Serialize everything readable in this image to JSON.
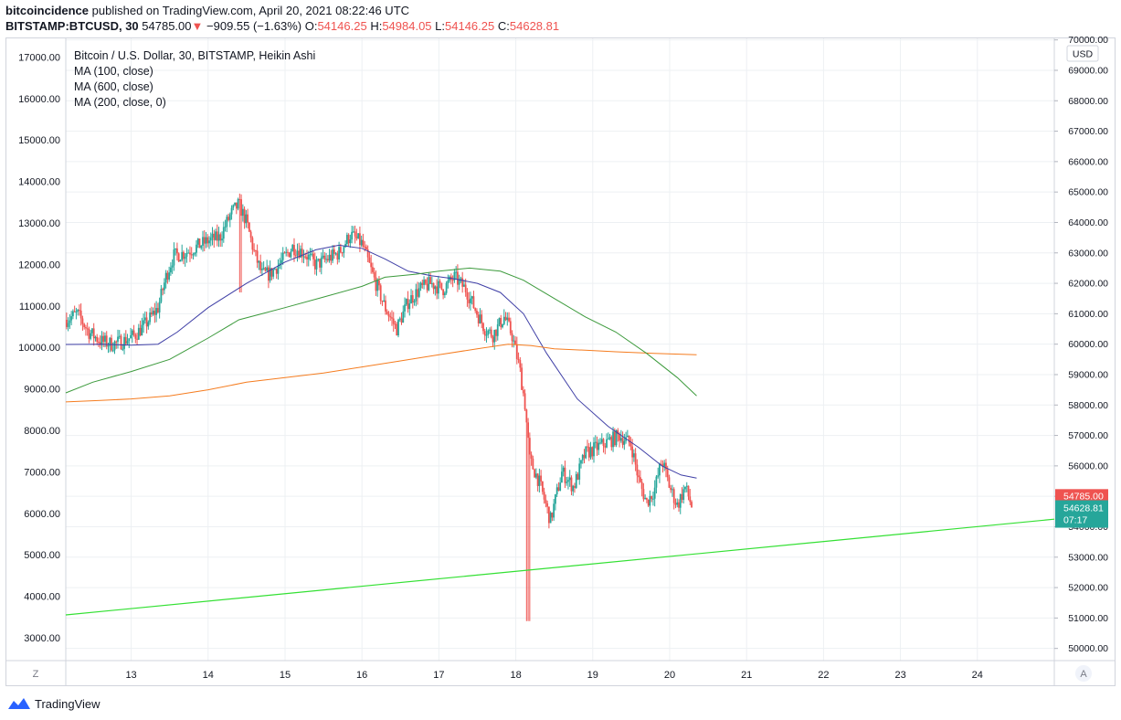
{
  "header": {
    "publisher": "bitcoincidence",
    "published_text": "published on TradingView.com, April 20, 2021 08:22:46 UTC",
    "symbol": "BITSTAMP:BTCUSD, 30",
    "last_price": "54785.00",
    "change_arrow": "▼",
    "change": "−909.55 (−1.63%)",
    "o_label": "O:",
    "o_value": "54146.25",
    "h_label": "H:",
    "h_value": "54984.05",
    "l_label": "L:",
    "l_value": "54146.25",
    "c_label": "C:",
    "c_value": "54628.81"
  },
  "legend": {
    "title": "Bitcoin / U.S. Dollar, 30, BITSTAMP, Heikin Ashi",
    "ma1": "MA (100, close)",
    "ma2": "MA (600, close)",
    "ma3": "MA (200, close, 0)"
  },
  "footer": {
    "brand": "TradingView",
    "left_button": "Z",
    "right_button": "A"
  },
  "colors": {
    "up": "#26a69a",
    "down": "#ef5350",
    "ma100": "#3f3fa6",
    "ma600": "#f57c1f",
    "ma200": "#3c9a3c",
    "trend": "#33e033",
    "grid": "#edf0f3",
    "text": "#131722"
  },
  "chart_data": {
    "type": "candlestick",
    "style": "Heikin Ashi",
    "x_ticks": [
      "13",
      "14",
      "15",
      "16",
      "17",
      "18",
      "19",
      "20",
      "21",
      "22",
      "23",
      "24"
    ],
    "x_tick_days": [
      13,
      14,
      15,
      16,
      17,
      18,
      19,
      20,
      21,
      22,
      23,
      24
    ],
    "x_range_days": [
      12.15,
      25.0
    ],
    "right_axis": {
      "unit_label": "USD",
      "range": [
        49600,
        70050
      ],
      "ticks": [
        "70000.00",
        "69000.00",
        "68000.00",
        "67000.00",
        "66000.00",
        "65000.00",
        "64000.00",
        "63000.00",
        "62000.00",
        "61000.00",
        "60000.00",
        "59000.00",
        "58000.00",
        "57000.00",
        "56000.00",
        "55000.00",
        "54000.00",
        "53000.00",
        "52000.00",
        "51000.00",
        "50000.00"
      ]
    },
    "left_axis": {
      "range": [
        2450,
        17450
      ],
      "ticks": [
        "17000.00",
        "16000.00",
        "15000.00",
        "14000.00",
        "13000.00",
        "12000.00",
        "11000.00",
        "10000.00",
        "9000.00",
        "8000.00",
        "7000.00",
        "6000.00",
        "5000.00",
        "4000.00",
        "3000.00"
      ]
    },
    "price_labels": [
      {
        "value": "54785.00",
        "price": 54785,
        "color": "#ef5350"
      },
      {
        "value": "54628.81",
        "price": 54628.81,
        "color": "#26a69a",
        "countdown": "07:17"
      }
    ],
    "price_path": [
      [
        12.15,
        60800
      ],
      [
        12.3,
        61000
      ],
      [
        12.45,
        60400
      ],
      [
        12.6,
        60100
      ],
      [
        12.75,
        60000
      ],
      [
        12.9,
        60100
      ],
      [
        13.05,
        60300
      ],
      [
        13.2,
        60700
      ],
      [
        13.35,
        61200
      ],
      [
        13.45,
        62200
      ],
      [
        13.55,
        62900
      ],
      [
        13.7,
        63000
      ],
      [
        13.85,
        63200
      ],
      [
        14.0,
        63400
      ],
      [
        14.15,
        63500
      ],
      [
        14.3,
        64300
      ],
      [
        14.4,
        64600
      ],
      [
        14.5,
        64000
      ],
      [
        14.6,
        63000
      ],
      [
        14.7,
        62300
      ],
      [
        14.8,
        62300
      ],
      [
        14.95,
        62700
      ],
      [
        15.1,
        63200
      ],
      [
        15.25,
        63000
      ],
      [
        15.4,
        62600
      ],
      [
        15.55,
        62800
      ],
      [
        15.7,
        63000
      ],
      [
        15.85,
        63600
      ],
      [
        16.0,
        63300
      ],
      [
        16.15,
        62200
      ],
      [
        16.3,
        61200
      ],
      [
        16.45,
        60500
      ],
      [
        16.6,
        61400
      ],
      [
        16.75,
        61800
      ],
      [
        16.9,
        62000
      ],
      [
        17.05,
        61800
      ],
      [
        17.2,
        62200
      ],
      [
        17.35,
        61800
      ],
      [
        17.5,
        61000
      ],
      [
        17.6,
        60500
      ],
      [
        17.7,
        60300
      ],
      [
        17.85,
        60900
      ],
      [
        17.95,
        60300
      ],
      [
        18.05,
        59200
      ],
      [
        18.12,
        58000
      ],
      [
        18.18,
        56200
      ],
      [
        18.3,
        55500
      ],
      [
        18.45,
        54200
      ],
      [
        18.6,
        55800
      ],
      [
        18.75,
        55300
      ],
      [
        18.9,
        56400
      ],
      [
        19.05,
        56600
      ],
      [
        19.2,
        56800
      ],
      [
        19.35,
        57000
      ],
      [
        19.5,
        56700
      ],
      [
        19.6,
        55500
      ],
      [
        19.7,
        54800
      ],
      [
        19.8,
        55200
      ],
      [
        19.9,
        56200
      ],
      [
        20.0,
        55300
      ],
      [
        20.1,
        54700
      ],
      [
        20.2,
        55300
      ],
      [
        20.3,
        54600
      ]
    ],
    "series": [
      {
        "name": "MA (100, close)",
        "color": "#3f3fa6",
        "points": [
          [
            12.15,
            59990
          ],
          [
            12.6,
            60000
          ],
          [
            13.0,
            59970
          ],
          [
            13.35,
            60000
          ],
          [
            13.6,
            60400
          ],
          [
            14.0,
            61200
          ],
          [
            14.5,
            62000
          ],
          [
            15.0,
            62700
          ],
          [
            15.4,
            63100
          ],
          [
            15.7,
            63250
          ],
          [
            16.0,
            63150
          ],
          [
            16.3,
            62800
          ],
          [
            16.6,
            62400
          ],
          [
            16.9,
            62250
          ],
          [
            17.2,
            62150
          ],
          [
            17.5,
            62000
          ],
          [
            17.8,
            61700
          ],
          [
            18.1,
            61000
          ],
          [
            18.4,
            59700
          ],
          [
            18.8,
            58200
          ],
          [
            19.2,
            57300
          ],
          [
            19.6,
            56600
          ],
          [
            19.9,
            56000
          ],
          [
            20.15,
            55700
          ],
          [
            20.35,
            55600
          ]
        ]
      },
      {
        "name": "MA (600, close)",
        "color": "#f57c1f",
        "points": [
          [
            12.15,
            58100
          ],
          [
            12.6,
            58150
          ],
          [
            13.0,
            58200
          ],
          [
            13.5,
            58300
          ],
          [
            14.0,
            58500
          ],
          [
            14.5,
            58750
          ],
          [
            15.0,
            58900
          ],
          [
            15.5,
            59050
          ],
          [
            16.0,
            59250
          ],
          [
            16.5,
            59450
          ],
          [
            17.0,
            59650
          ],
          [
            17.5,
            59850
          ],
          [
            17.9,
            60000
          ],
          [
            18.2,
            59950
          ],
          [
            18.5,
            59850
          ],
          [
            18.9,
            59800
          ],
          [
            19.3,
            59750
          ],
          [
            19.8,
            59700
          ],
          [
            20.35,
            59650
          ]
        ]
      },
      {
        "name": "MA (200, close, 0)",
        "color": "#3c9a3c",
        "points": [
          [
            12.15,
            58400
          ],
          [
            12.5,
            58750
          ],
          [
            13.0,
            59100
          ],
          [
            13.5,
            59500
          ],
          [
            14.0,
            60200
          ],
          [
            14.4,
            60800
          ],
          [
            14.7,
            61000
          ],
          [
            15.0,
            61200
          ],
          [
            15.5,
            61550
          ],
          [
            16.0,
            61900
          ],
          [
            16.3,
            62200
          ],
          [
            16.7,
            62300
          ],
          [
            17.0,
            62400
          ],
          [
            17.4,
            62500
          ],
          [
            17.8,
            62400
          ],
          [
            18.1,
            62100
          ],
          [
            18.5,
            61500
          ],
          [
            18.9,
            60900
          ],
          [
            19.3,
            60400
          ],
          [
            19.7,
            59700
          ],
          [
            20.1,
            58900
          ],
          [
            20.35,
            58300
          ]
        ]
      },
      {
        "name": "",
        "color": "#33e033",
        "type": "trendline",
        "points": [
          [
            12.15,
            51100
          ],
          [
            25.0,
            54250
          ]
        ]
      }
    ]
  }
}
